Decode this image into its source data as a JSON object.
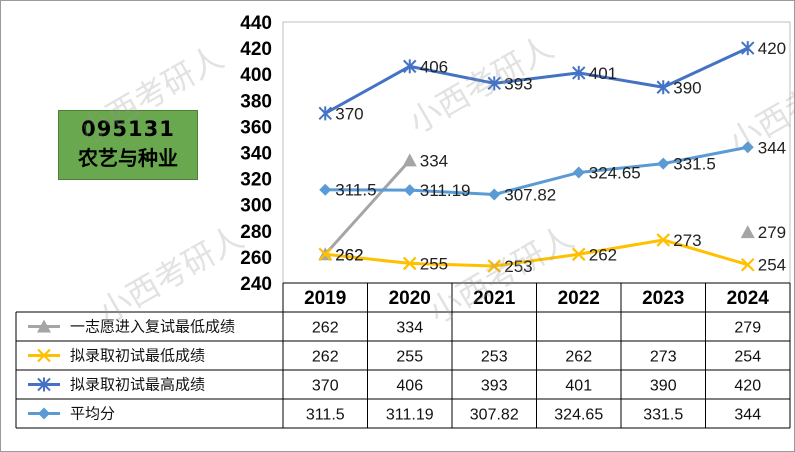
{
  "badge": {
    "code": "095131",
    "name": "农艺与种业"
  },
  "watermark": "小西考研人",
  "chart_data": {
    "type": "line",
    "categories": [
      "2019",
      "2020",
      "2021",
      "2022",
      "2023",
      "2024"
    ],
    "ylim": [
      240,
      440
    ],
    "yticks": [
      "440",
      "420",
      "400",
      "380",
      "360",
      "340",
      "320",
      "300",
      "280",
      "260",
      "240"
    ],
    "series": [
      {
        "name": "一志愿进入复试最低成绩",
        "values": [
          262,
          334,
          null,
          null,
          null,
          279
        ],
        "labels": [
          "262",
          "334",
          "",
          "",
          "",
          "279"
        ],
        "color": "#a5a5a5",
        "marker": "triangle"
      },
      {
        "name": "拟录取初试最低成绩",
        "values": [
          262,
          255,
          253,
          262,
          273,
          254
        ],
        "labels": [
          "262",
          "255",
          "253",
          "262",
          "273",
          "254"
        ],
        "color": "#ffc000",
        "marker": "x"
      },
      {
        "name": "拟录取初试最高成绩",
        "values": [
          370,
          406,
          393,
          401,
          390,
          420
        ],
        "labels": [
          "370",
          "406",
          "393",
          "401",
          "390",
          "420"
        ],
        "color": "#4472c4",
        "marker": "star"
      },
      {
        "name": "平均分",
        "values": [
          311.5,
          311.19,
          307.82,
          324.65,
          331.5,
          344
        ],
        "labels": [
          "311.5",
          "311.19",
          "307.82",
          "324.65",
          "331.5",
          "344"
        ],
        "color": "#5b9bd5",
        "marker": "diamond"
      }
    ]
  }
}
